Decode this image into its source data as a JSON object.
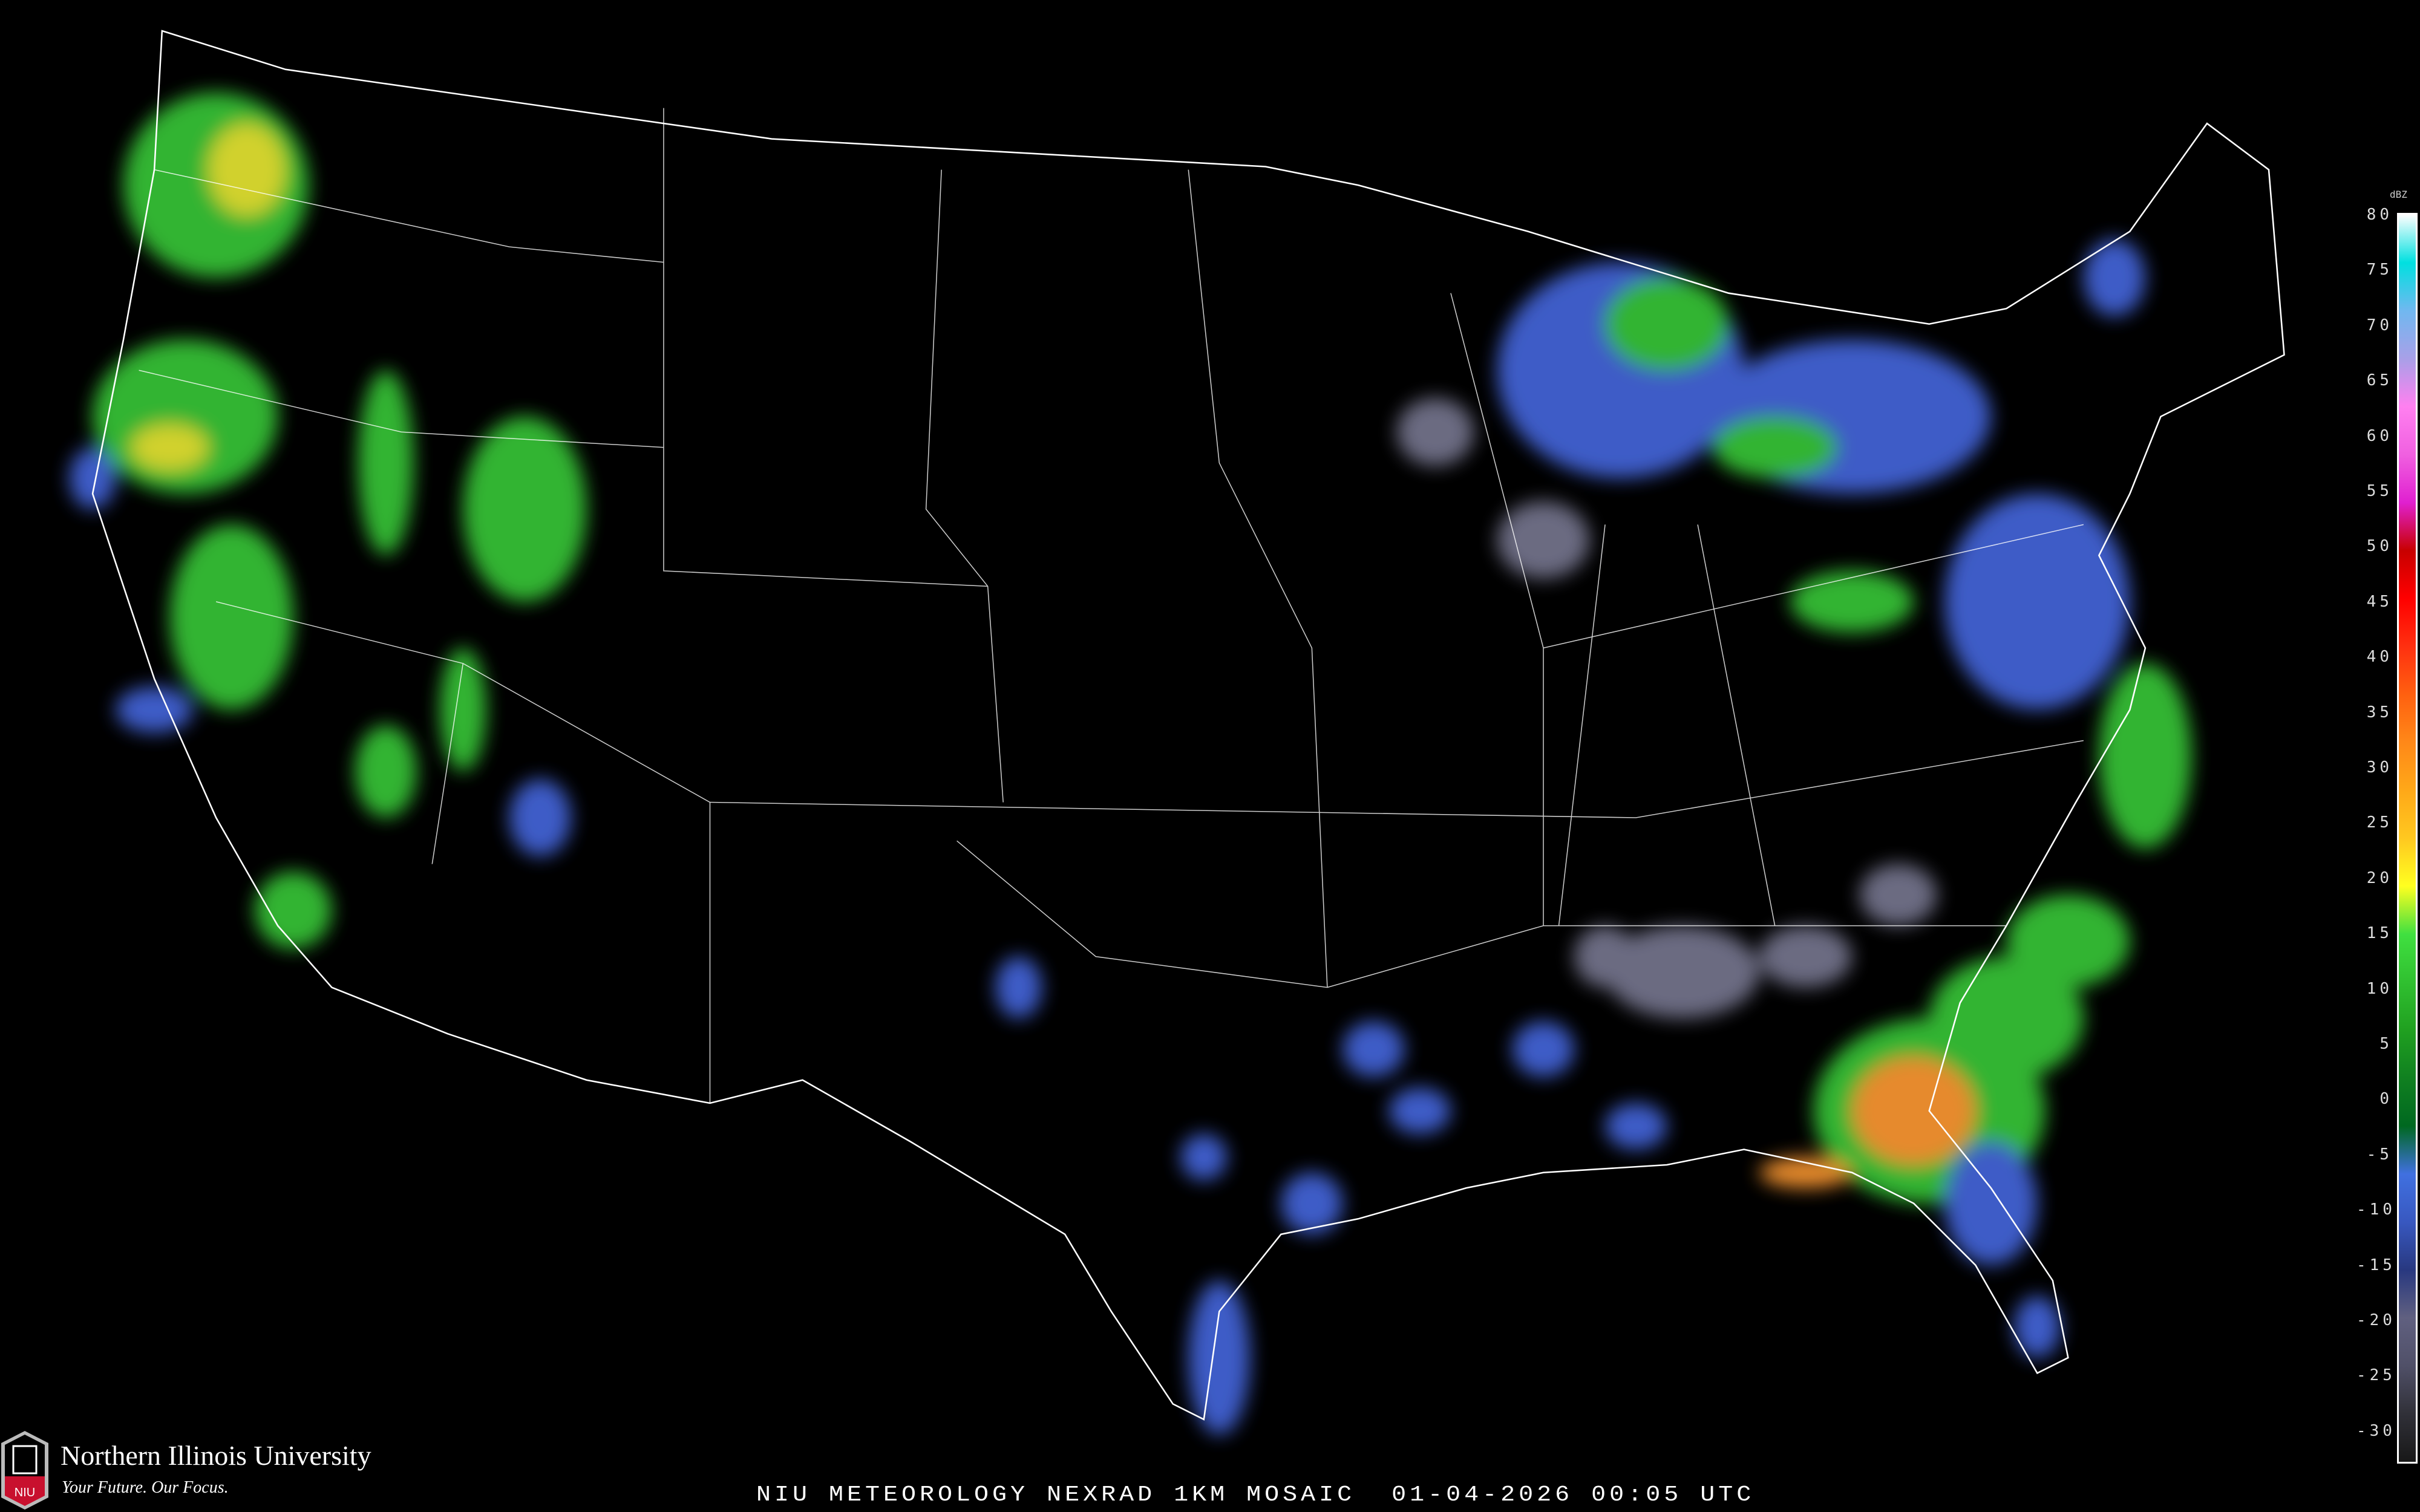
{
  "caption": "NIU METEOROLOGY NEXRAD 1KM MOSAIC  01-04-2026 00:05 UTC",
  "logo": {
    "name": "Northern Illinois University",
    "tagline": "Your Future. Our Focus.",
    "mark": "NIU",
    "brand_color": "#c8102e"
  },
  "legend": {
    "unit": "dBZ",
    "ticks": [
      "80",
      "75",
      "70",
      "65",
      "60",
      "55",
      "50",
      "45",
      "40",
      "35",
      "30",
      "25",
      "20",
      "15",
      "10",
      "5",
      "0",
      "-5",
      "-10",
      "-15",
      "-20",
      "-25",
      "-30"
    ],
    "colors": [
      "#ffffff",
      "#00e0e0",
      "#70b8f0",
      "#a8a0e8",
      "#ff80f0",
      "#f060e0",
      "#e020d0",
      "#c80000",
      "#ff0000",
      "#ff3010",
      "#ff6010",
      "#ff8818",
      "#ffa818",
      "#ffc820",
      "#ffff20",
      "#40e040",
      "#30c030",
      "#20a020",
      "#108020",
      "#006820",
      "#4070e0",
      "#3858c0",
      "#283880",
      "#606080",
      "#505068",
      "#303038",
      "#181818"
    ]
  },
  "map": {
    "border_color": "#ffffff",
    "county_color": "#3a3a3a",
    "road_color": "#8a4a20"
  }
}
